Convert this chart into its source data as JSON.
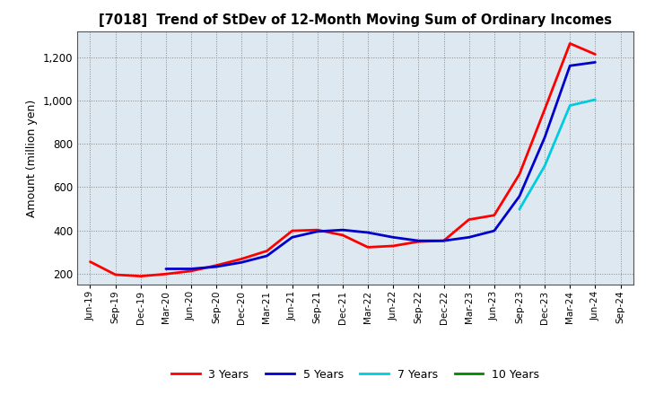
{
  "title": "[7018]  Trend of StDev of 12-Month Moving Sum of Ordinary Incomes",
  "ylabel": "Amount (million yen)",
  "background_color": "#ffffff",
  "plot_bg_color": "#dde8f0",
  "ylim": [
    150,
    1320
  ],
  "yticks": [
    200,
    400,
    600,
    800,
    1000,
    1200
  ],
  "x_labels": [
    "Jun-19",
    "Sep-19",
    "Dec-19",
    "Mar-20",
    "Jun-20",
    "Sep-20",
    "Dec-20",
    "Mar-21",
    "Jun-21",
    "Sep-21",
    "Dec-21",
    "Mar-22",
    "Jun-22",
    "Sep-22",
    "Dec-22",
    "Mar-23",
    "Jun-23",
    "Sep-23",
    "Dec-23",
    "Mar-24",
    "Jun-24",
    "Sep-24"
  ],
  "series": {
    "3 Years": {
      "color": "#ff0000",
      "linewidth": 2.0,
      "values": [
        255,
        195,
        188,
        198,
        212,
        238,
        268,
        305,
        398,
        402,
        378,
        322,
        328,
        348,
        352,
        450,
        470,
        660,
        960,
        1265,
        1215,
        null
      ]
    },
    "5 Years": {
      "color": "#0000cc",
      "linewidth": 2.0,
      "values": [
        null,
        null,
        null,
        222,
        222,
        232,
        252,
        282,
        368,
        395,
        402,
        390,
        368,
        352,
        352,
        368,
        398,
        558,
        830,
        1162,
        1178,
        null
      ]
    },
    "7 Years": {
      "color": "#00ccdd",
      "linewidth": 2.0,
      "values": [
        null,
        null,
        null,
        null,
        null,
        null,
        null,
        null,
        null,
        null,
        null,
        null,
        null,
        null,
        null,
        null,
        null,
        498,
        698,
        978,
        1005,
        null
      ]
    },
    "10 Years": {
      "color": "#008800",
      "linewidth": 2.0,
      "values": [
        null,
        null,
        null,
        null,
        null,
        null,
        null,
        null,
        null,
        null,
        null,
        null,
        null,
        null,
        null,
        null,
        null,
        null,
        null,
        null,
        null,
        null
      ]
    }
  },
  "legend_entries": [
    "3 Years",
    "5 Years",
    "7 Years",
    "10 Years"
  ],
  "legend_colors": [
    "#ff0000",
    "#0000cc",
    "#00ccdd",
    "#008800"
  ]
}
